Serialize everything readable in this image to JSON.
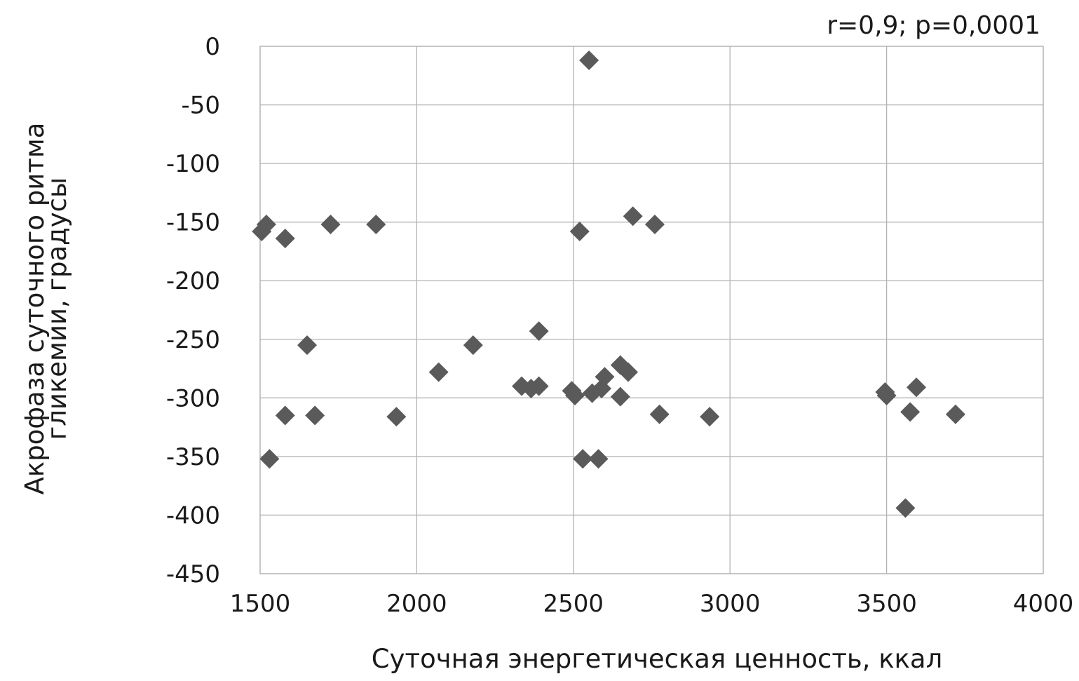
{
  "chart_data": {
    "type": "scatter",
    "annotation": "r=0,9; p=0,0001",
    "xlabel": "Суточная энергетическая ценность, ккал",
    "ylabel_lines": [
      "Акрофаза суточного ритма",
      "гликемии, градусы"
    ],
    "xlim": [
      1500,
      4000
    ],
    "ylim": [
      -450,
      0
    ],
    "x_ticks": [
      1500,
      2000,
      2500,
      3000,
      3500,
      4000
    ],
    "x_tick_labels": [
      "1500",
      "2000",
      "2500",
      "3000",
      "3500",
      "4000"
    ],
    "y_ticks": [
      0,
      -50,
      -100,
      -150,
      -200,
      -250,
      -300,
      -350,
      -400,
      -450
    ],
    "y_tick_labels": [
      "0",
      "-50",
      "-100",
      "-150",
      "-200",
      "-250",
      "-300",
      "-350",
      "-400",
      "-450"
    ],
    "grid": true,
    "marker": "diamond",
    "marker_color": "#5a5a5a",
    "grid_color": "#b3b3b3",
    "points": [
      {
        "x": 2550,
        "y": -12
      },
      {
        "x": 1505,
        "y": -158
      },
      {
        "x": 1520,
        "y": -152
      },
      {
        "x": 1580,
        "y": -164
      },
      {
        "x": 1725,
        "y": -152
      },
      {
        "x": 1870,
        "y": -152
      },
      {
        "x": 2520,
        "y": -158
      },
      {
        "x": 2690,
        "y": -145
      },
      {
        "x": 2760,
        "y": -152
      },
      {
        "x": 1650,
        "y": -255
      },
      {
        "x": 2180,
        "y": -255
      },
      {
        "x": 2390,
        "y": -243
      },
      {
        "x": 2070,
        "y": -278
      },
      {
        "x": 1580,
        "y": -315
      },
      {
        "x": 1675,
        "y": -315
      },
      {
        "x": 1935,
        "y": -316
      },
      {
        "x": 2335,
        "y": -290
      },
      {
        "x": 2365,
        "y": -292
      },
      {
        "x": 2390,
        "y": -290
      },
      {
        "x": 2495,
        "y": -294
      },
      {
        "x": 2505,
        "y": -298
      },
      {
        "x": 2560,
        "y": -296
      },
      {
        "x": 2590,
        "y": -292
      },
      {
        "x": 2600,
        "y": -282
      },
      {
        "x": 2650,
        "y": -272
      },
      {
        "x": 2675,
        "y": -278
      },
      {
        "x": 2650,
        "y": -299
      },
      {
        "x": 2775,
        "y": -314
      },
      {
        "x": 2935,
        "y": -316
      },
      {
        "x": 1530,
        "y": -352
      },
      {
        "x": 2530,
        "y": -352
      },
      {
        "x": 2580,
        "y": -352
      },
      {
        "x": 3495,
        "y": -295
      },
      {
        "x": 3500,
        "y": -298
      },
      {
        "x": 3595,
        "y": -291
      },
      {
        "x": 3575,
        "y": -312
      },
      {
        "x": 3720,
        "y": -314
      },
      {
        "x": 3560,
        "y": -394
      }
    ]
  }
}
